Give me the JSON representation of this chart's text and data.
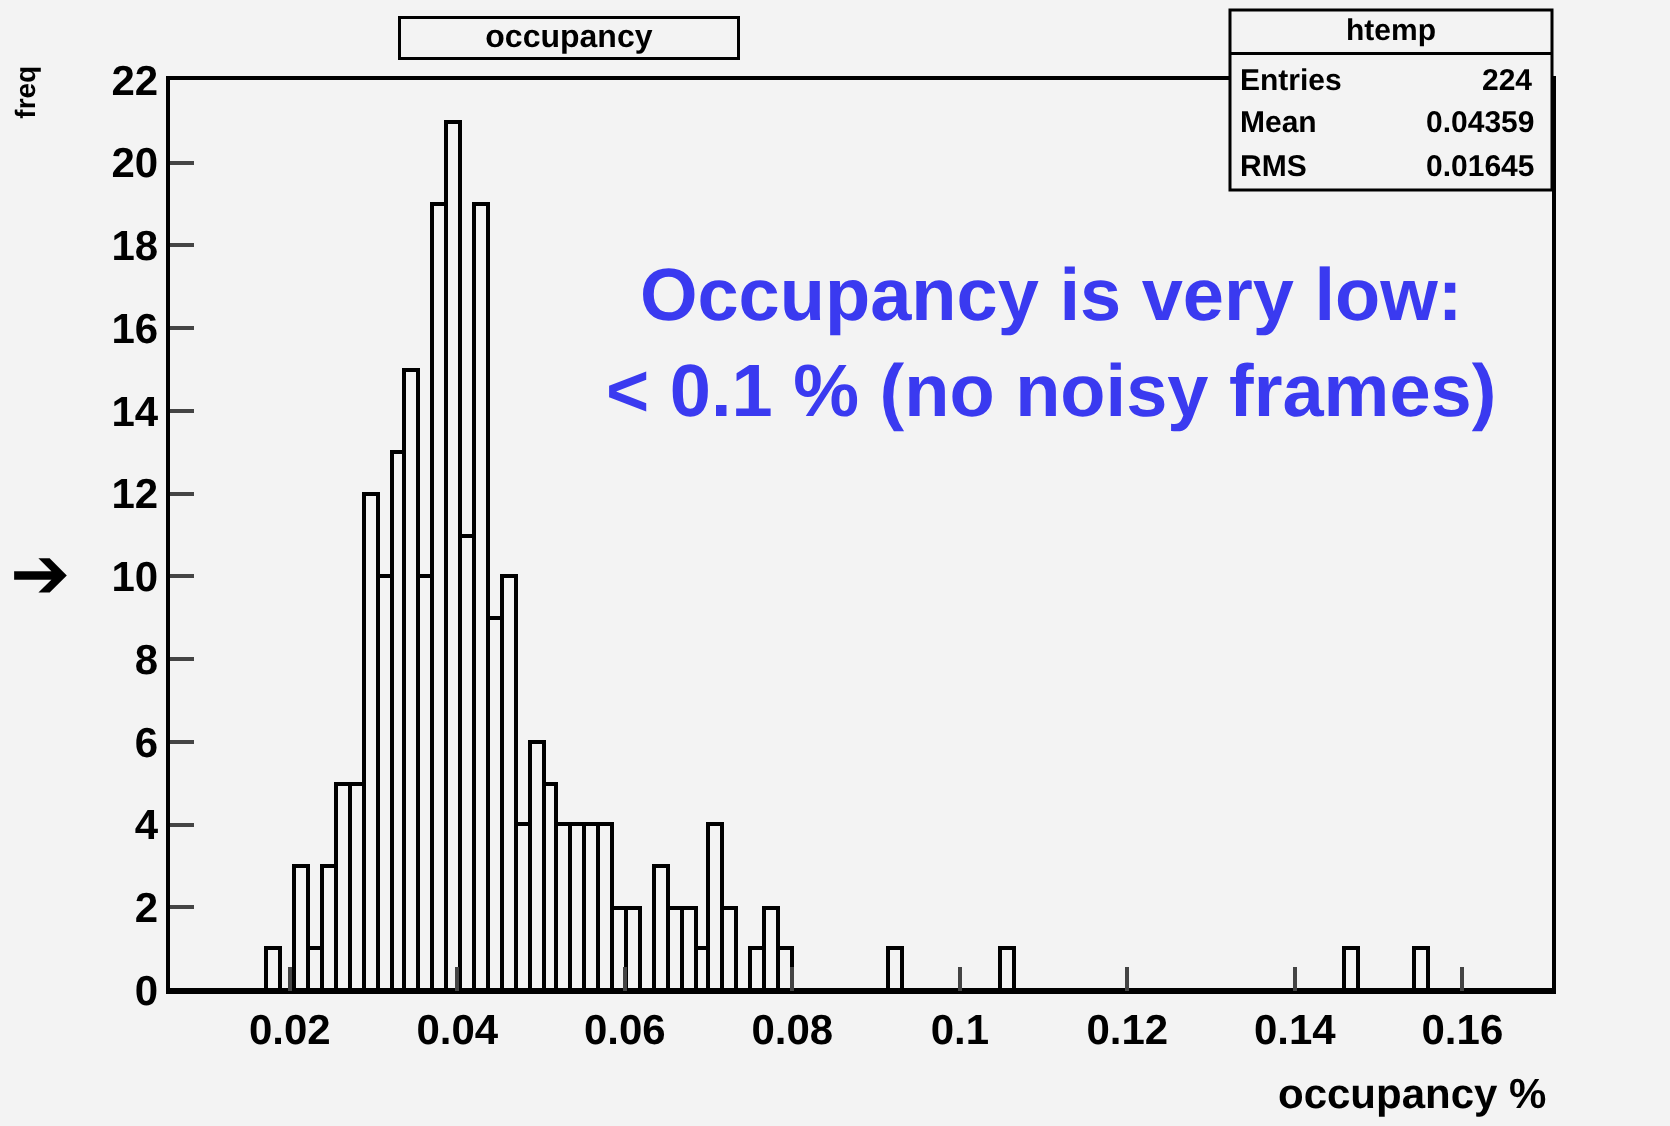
{
  "chart_data": {
    "type": "histogram",
    "title": "occupancy",
    "xlabel": "occupancy %",
    "ylabel": "freq",
    "bins": [
      0.0057,
      0.00735,
      0.009,
      0.01065,
      0.0123,
      0.01395,
      0.0156,
      0.01725,
      0.0189,
      0.02055,
      0.0222,
      0.02385,
      0.0255,
      0.02715,
      0.0288,
      0.03045,
      0.0321,
      0.03375,
      0.0354,
      0.03705,
      0.0387,
      0.04035,
      0.042,
      0.04365,
      0.0453,
      0.04695,
      0.0486,
      0.05025,
      0.0519,
      0.05355,
      0.0552,
      0.05685,
      0.0585,
      0.06015,
      0.0618,
      0.06345,
      0.0651,
      0.06675,
      0.0684,
      0.07005,
      0.0717,
      0.07335,
      0.075,
      0.07665,
      0.0783,
      0.07995,
      0.0816,
      0.08325,
      0.0849,
      0.08655,
      0.0882,
      0.08985,
      0.0915,
      0.09315,
      0.0948,
      0.09645,
      0.0981,
      0.09975,
      0.1014,
      0.10305,
      0.1047,
      0.10635,
      0.108,
      0.10965,
      0.1113,
      0.11295,
      0.1146,
      0.11625,
      0.1179,
      0.11955,
      0.1212,
      0.12285,
      0.1245,
      0.12615,
      0.1278,
      0.12945,
      0.1311,
      0.13275,
      0.1344,
      0.13605,
      0.1377,
      0.13935,
      0.141,
      0.14265,
      0.1443,
      0.14595,
      0.1476,
      0.14925,
      0.1509,
      0.15255,
      0.1542,
      0.15585,
      0.1575,
      0.15915,
      0.1608,
      0.16245,
      0.1641,
      0.16575,
      0.1674,
      0.16905,
      0.1707
    ],
    "values": [
      0,
      0,
      0,
      0,
      0,
      0,
      0,
      1,
      0,
      3,
      1,
      3,
      5,
      5,
      12,
      10,
      13,
      15,
      10,
      19,
      21,
      11,
      19,
      9,
      10,
      4,
      6,
      5,
      4,
      4,
      4,
      4,
      2,
      2,
      0,
      3,
      2,
      2,
      1,
      4,
      2,
      0,
      1,
      2,
      1,
      0,
      0,
      0,
      0,
      0,
      0,
      0,
      1,
      0,
      0,
      0,
      0,
      0,
      0,
      0,
      1,
      0,
      0,
      0,
      0,
      0,
      0,
      0,
      0,
      0,
      0,
      0,
      0,
      0,
      0,
      0,
      0,
      0,
      0,
      0,
      0,
      0,
      0,
      0,
      0,
      1,
      0,
      0,
      0,
      0,
      1,
      0,
      0,
      0,
      0,
      0,
      0,
      0,
      0,
      0
    ],
    "color": "#000000",
    "xlim": [
      0.0057,
      0.1707
    ],
    "xticks": [
      0.02,
      0.04,
      0.06,
      0.08,
      0.1,
      0.12,
      0.14,
      0.16
    ],
    "ylim": [
      0,
      22
    ],
    "yticks": [
      0,
      2,
      4,
      6,
      8,
      10,
      12,
      14,
      16,
      18,
      20,
      22
    ],
    "grid": false,
    "annotations": [
      "Occupancy is very low:\n< 0.1 % (no noisy frames)",
      "htemp",
      "Entries",
      "224",
      "Mean",
      "0.04359",
      "RMS",
      "0.01645",
      "➔"
    ]
  }
}
